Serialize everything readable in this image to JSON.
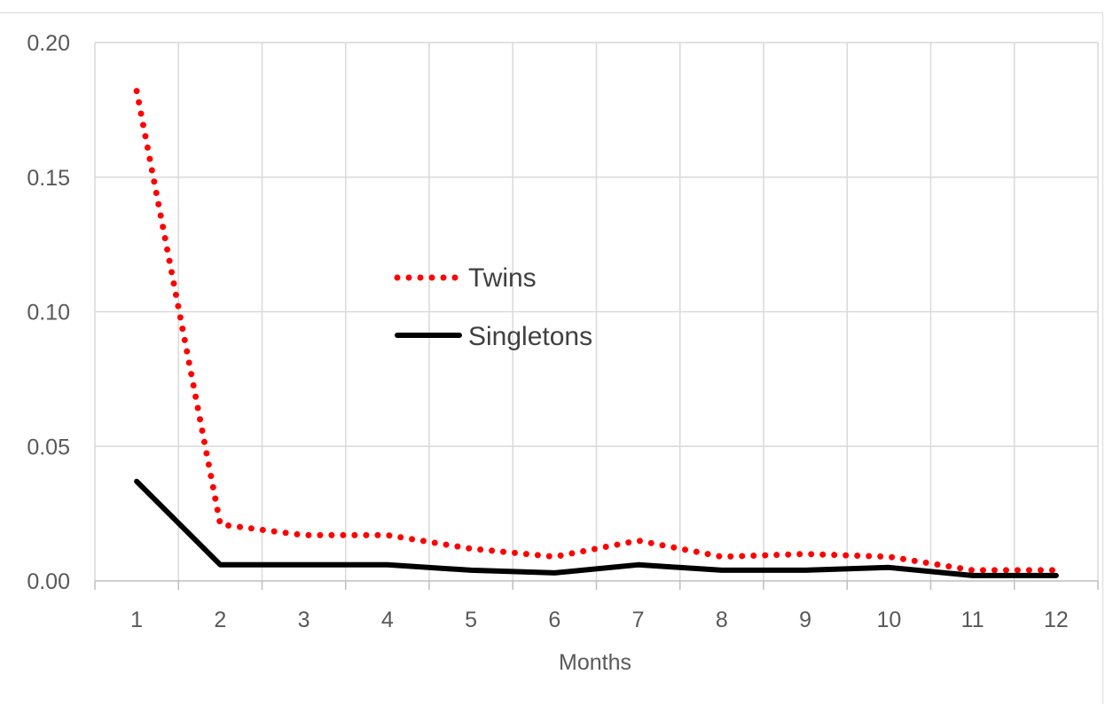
{
  "chart_data": {
    "type": "line",
    "title": "",
    "xlabel": "Months",
    "ylabel": "",
    "categories": [
      "1",
      "2",
      "3",
      "4",
      "5",
      "6",
      "7",
      "8",
      "9",
      "10",
      "11",
      "12"
    ],
    "y_ticks": [
      "0.00",
      "0.05",
      "0.10",
      "0.15",
      "0.20"
    ],
    "ylim": [
      0,
      0.2
    ],
    "grid": true,
    "legend_position": "center",
    "series": [
      {
        "name": "Twins",
        "style": "dotted",
        "color": "#ff0000",
        "values": [
          0.182,
          0.021,
          0.017,
          0.017,
          0.012,
          0.009,
          0.015,
          0.009,
          0.01,
          0.009,
          0.004,
          0.004
        ]
      },
      {
        "name": "Singletons",
        "style": "solid",
        "color": "#000000",
        "values": [
          0.037,
          0.006,
          0.006,
          0.006,
          0.004,
          0.003,
          0.006,
          0.004,
          0.004,
          0.005,
          0.002,
          0.002
        ]
      }
    ]
  }
}
